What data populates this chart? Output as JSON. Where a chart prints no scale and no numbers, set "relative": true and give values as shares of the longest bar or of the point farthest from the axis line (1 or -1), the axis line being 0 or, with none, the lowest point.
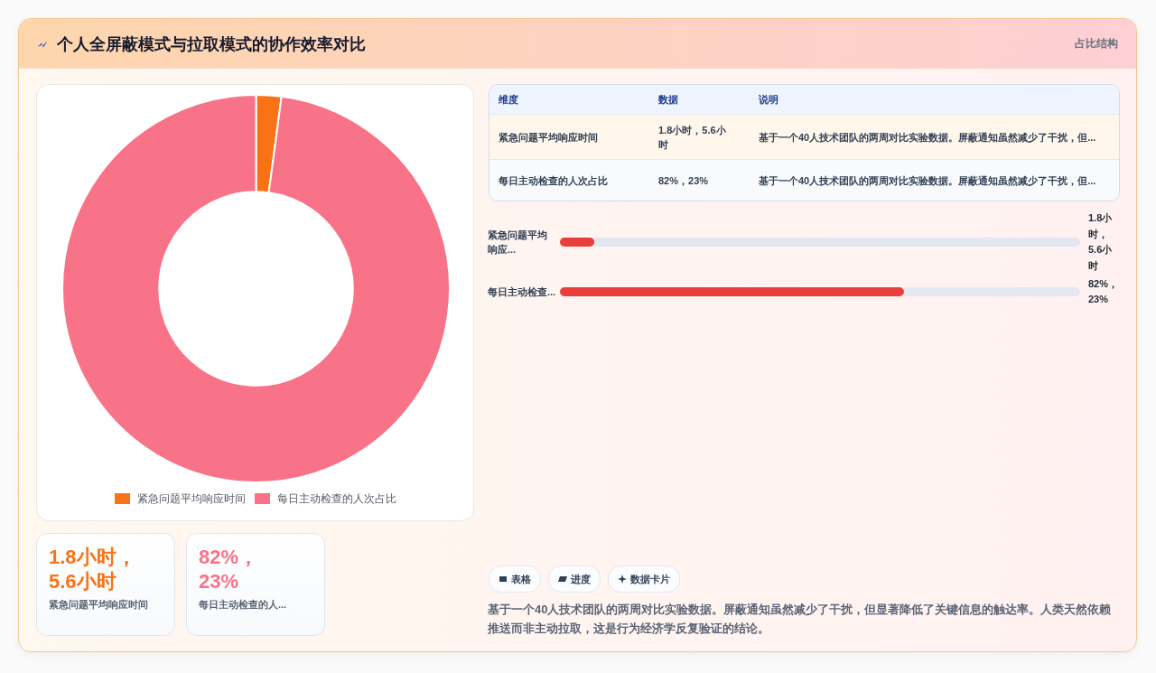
{
  "chart_data": [
    {
      "type": "other",
      "title": "个人全屏蔽模式与拉取模式的协作效率对比",
      "subtitle": "占比结构"
    },
    {
      "type": "donut",
      "categories": [
        "紧急问题平均响应时间",
        "每日主动检查的人次占比"
      ],
      "values": [
        2.1,
        97.9
      ],
      "colors": [
        "#f97316",
        "#f97388"
      ],
      "legend": "bottom"
    },
    {
      "type": "other",
      "annotations": [
        "维度",
        "数据",
        "说明",
        "紧急问题平均响应时间",
        "1.8小时，5.6小时",
        "基于一个40人技术团队的两周对比实验数据。屏蔽通知虽然减少了干扰，但...",
        "每日主动检查的人次占比",
        "82%，23%",
        "基于一个40人技术团队的两周对比实验数据。屏蔽通知虽然减少了干扰，但..."
      ]
    },
    {
      "type": "bar",
      "orientation": "horizontal",
      "relative": true,
      "categories": [
        "紧急问题平均响应...",
        "每日主动检查..."
      ],
      "values": [
        0.1,
        1
      ],
      "color": "#e93f3c",
      "annotations": [
        "1.8小时，5.6小时",
        "82%，23%"
      ]
    },
    {
      "type": "other",
      "annotations": [
        "1.8小时，5.6小时",
        "紧急问题平均响应时间",
        "82%，23%",
        "每日主动检查的人...",
        "表格",
        "进度",
        "数据卡片",
        "基于一个40人技术团队的两周对比实验数据。屏蔽通知虽然减少了干扰，但显著降低了关键信息的触达率。人类天然依赖推送而非主动拉取，这是行为经济学反复验证的结论。"
      ]
    }
  ]
}
